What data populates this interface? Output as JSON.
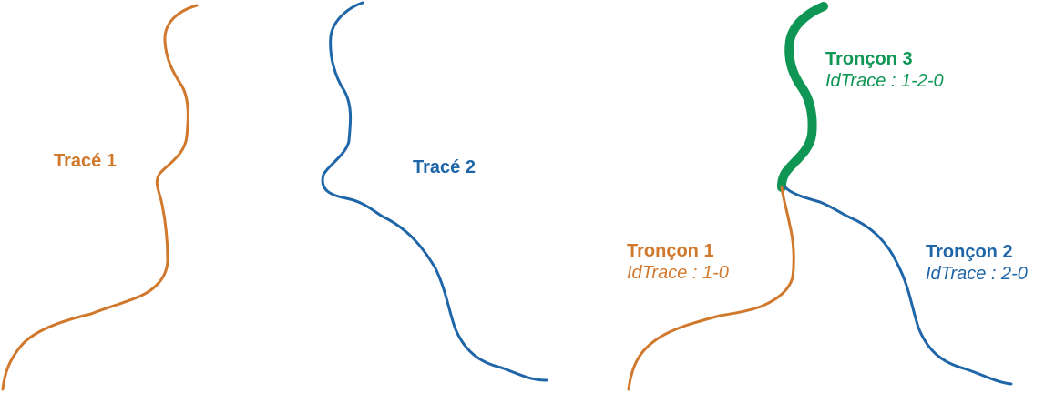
{
  "colors": {
    "orange": "#d0782c",
    "blue": "#1f66a8",
    "green": "#0f9654"
  },
  "left_panel": {
    "trace1_label": "Tracé 1",
    "trace2_label": "Tracé 2"
  },
  "right_panel": {
    "troncon1": {
      "name": "Tronçon 1",
      "id": "IdTrace : 1-0"
    },
    "troncon2": {
      "name": "Tronçon 2",
      "id": "IdTrace : 2-0"
    },
    "troncon3": {
      "name": "Tronçon 3",
      "id": "IdTrace : 1-2-0"
    }
  }
}
